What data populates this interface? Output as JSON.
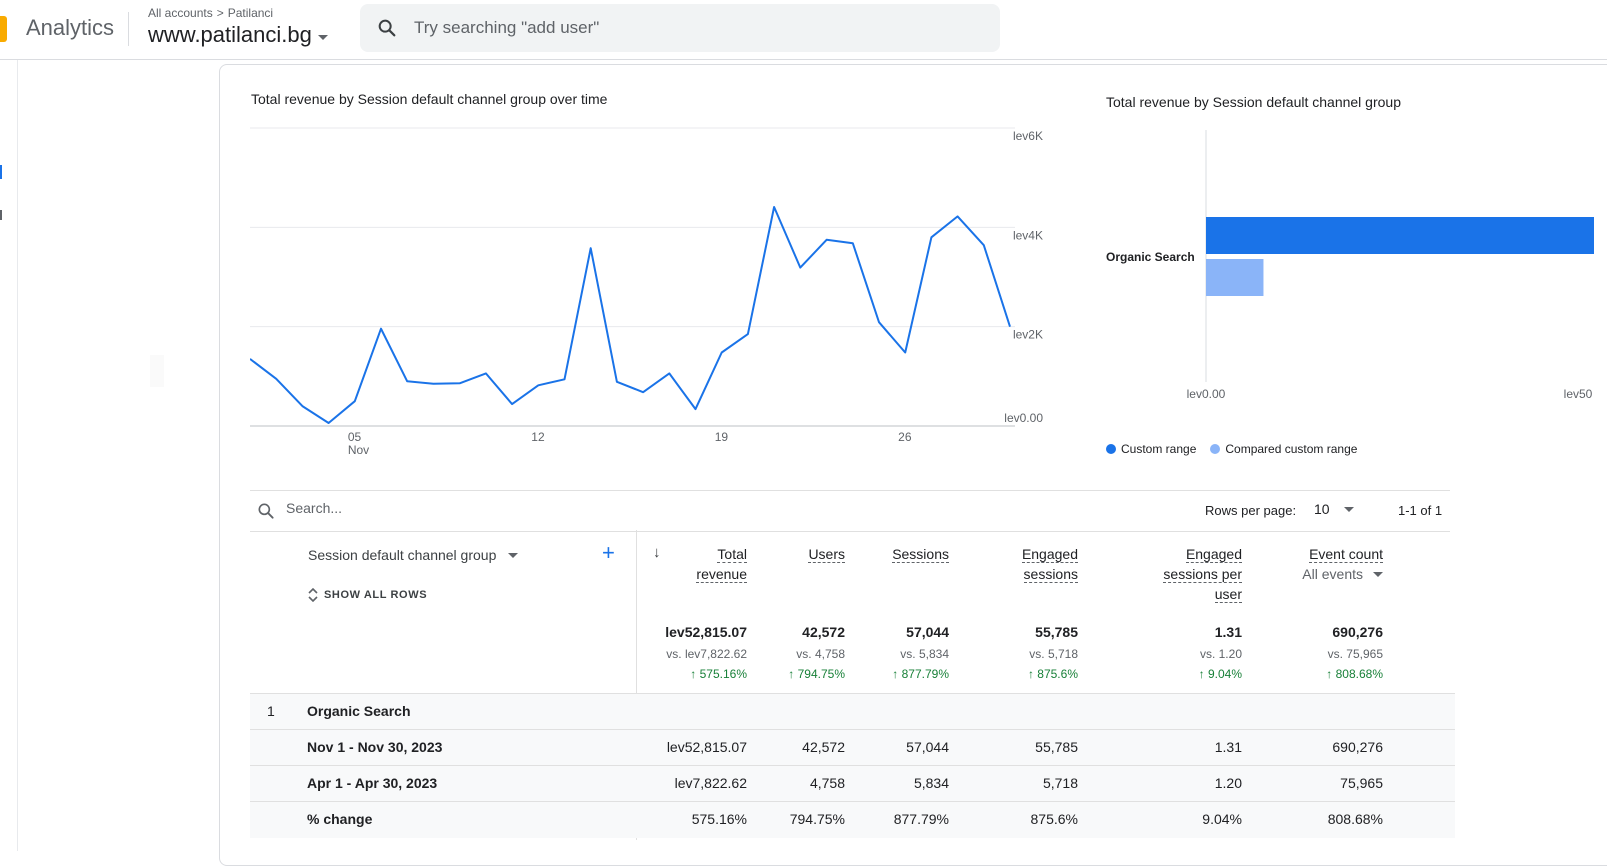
{
  "header": {
    "app_name": "Analytics",
    "breadcrumb_all": "All accounts",
    "breadcrumb_sep": ">",
    "breadcrumb_account": "Patilanci",
    "property_name": "www.patilanci.bg",
    "search_placeholder": "Try searching \"add user\""
  },
  "colors": {
    "accent": "#1a73e8",
    "compare": "#8ab4f8",
    "positive": "#188038",
    "brand": "#f9ab00"
  },
  "chart_data": [
    {
      "type": "line",
      "title": "Total revenue by Session default channel group over time",
      "x_tick_labels": [
        "05",
        "12",
        "19",
        "26"
      ],
      "x_tick_sublabel": "Nov",
      "y_tick_labels": [
        "lev0.00",
        "lev2K",
        "lev4K",
        "lev6K"
      ],
      "ylim": [
        0,
        6000
      ],
      "x": [
        1,
        2,
        3,
        4,
        5,
        6,
        7,
        8,
        9,
        10,
        11,
        12,
        13,
        14,
        15,
        16,
        17,
        18,
        19,
        20,
        21,
        22,
        23,
        24,
        25,
        26,
        27,
        28,
        29,
        30
      ],
      "values": [
        1350,
        950,
        400,
        60,
        500,
        1960,
        900,
        850,
        860,
        1060,
        440,
        820,
        940,
        3580,
        890,
        680,
        1060,
        340,
        1480,
        1850,
        4410,
        3190,
        3750,
        3680,
        2090,
        1480,
        3800,
        4220,
        3640,
        2000
      ]
    },
    {
      "type": "bar",
      "title": "Total revenue by Session default channel group",
      "categories": [
        "Organic Search"
      ],
      "series": [
        {
          "name": "Custom range",
          "values": [
            52815.07
          ]
        },
        {
          "name": "Compared custom range",
          "values": [
            7822.62
          ]
        }
      ],
      "x_tick_labels": [
        "lev0.00",
        "lev50"
      ],
      "legend": "bottom-left"
    }
  ],
  "table": {
    "search_placeholder": "Search...",
    "rows_per_page_label": "Rows per page:",
    "rows_per_page_value": "10",
    "pagination": "1-1 of 1",
    "dimension_label": "Session default channel group",
    "show_all_rows": "SHOW ALL ROWS",
    "sort_icon": "↓",
    "add_icon": "+",
    "columns": {
      "revenue": {
        "line1": "Total",
        "line2": "revenue"
      },
      "users": {
        "line1": "Users"
      },
      "sessions": {
        "line1": "Sessions"
      },
      "engaged": {
        "line1": "Engaged",
        "line2": "sessions"
      },
      "engaged_per_user": {
        "line1": "Engaged",
        "line2": "sessions per",
        "line3": "user"
      },
      "event_count": {
        "line1": "Event count",
        "sub": "All events"
      }
    },
    "totals": {
      "main": [
        "lev52,815.07",
        "42,572",
        "57,044",
        "55,785",
        "1.31",
        "690,276"
      ],
      "vs": [
        "vs. lev7,822.62",
        "vs. 4,758",
        "vs. 5,834",
        "vs. 5,718",
        "vs. 1.20",
        "vs. 75,965"
      ],
      "pct": [
        "↑ 575.16%",
        "↑ 794.75%",
        "↑ 877.79%",
        "↑ 875.6%",
        "↑ 9.04%",
        "↑ 808.68%"
      ]
    },
    "group_row": {
      "index": "1",
      "label": "Organic Search"
    },
    "rows": [
      {
        "label": "Nov 1 - Nov 30, 2023",
        "values": [
          "lev52,815.07",
          "42,572",
          "57,044",
          "55,785",
          "1.31",
          "690,276"
        ]
      },
      {
        "label": "Apr 1 - Apr 30, 2023",
        "values": [
          "lev7,822.62",
          "4,758",
          "5,834",
          "5,718",
          "1.20",
          "75,965"
        ]
      },
      {
        "label": "% change",
        "values": [
          "575.16%",
          "794.75%",
          "877.79%",
          "875.6%",
          "9.04%",
          "808.68%"
        ]
      }
    ]
  }
}
